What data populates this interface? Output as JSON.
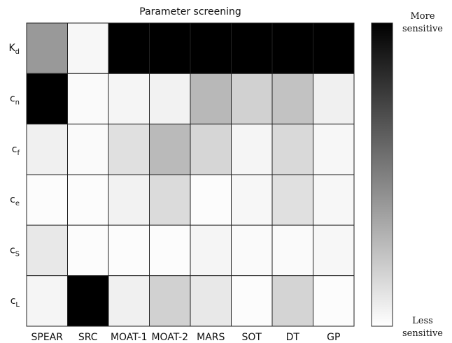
{
  "chart_data": {
    "type": "heatmap",
    "title": "Parameter screening",
    "columns": [
      "SPEAR",
      "SRC",
      "MOAT-1",
      "MOAT-2",
      "MARS",
      "SOT",
      "DT",
      "GP"
    ],
    "rows": [
      {
        "base": "K",
        "sub": "d"
      },
      {
        "base": "c",
        "sub": "n"
      },
      {
        "base": "c",
        "sub": "f"
      },
      {
        "base": "c",
        "sub": "e"
      },
      {
        "base": "c",
        "sub": "S"
      },
      {
        "base": "c",
        "sub": "L"
      }
    ],
    "values": [
      [
        0.4,
        0.03,
        1.0,
        1.0,
        1.0,
        1.0,
        1.0,
        1.0
      ],
      [
        1.0,
        0.02,
        0.04,
        0.05,
        0.28,
        0.18,
        0.24,
        0.06
      ],
      [
        0.06,
        0.02,
        0.12,
        0.27,
        0.16,
        0.04,
        0.15,
        0.03
      ],
      [
        0.01,
        0.01,
        0.05,
        0.14,
        0.01,
        0.03,
        0.12,
        0.03
      ],
      [
        0.09,
        0.01,
        0.01,
        0.01,
        0.04,
        0.02,
        0.02,
        0.03
      ],
      [
        0.04,
        1.0,
        0.06,
        0.18,
        0.09,
        0.01,
        0.17,
        0.01
      ]
    ],
    "colorbar": {
      "top_label": [
        "More",
        "sensitive"
      ],
      "bottom_label": [
        "Less",
        "sensitive"
      ],
      "low_color": "#ffffff",
      "high_color": "#000000"
    }
  }
}
